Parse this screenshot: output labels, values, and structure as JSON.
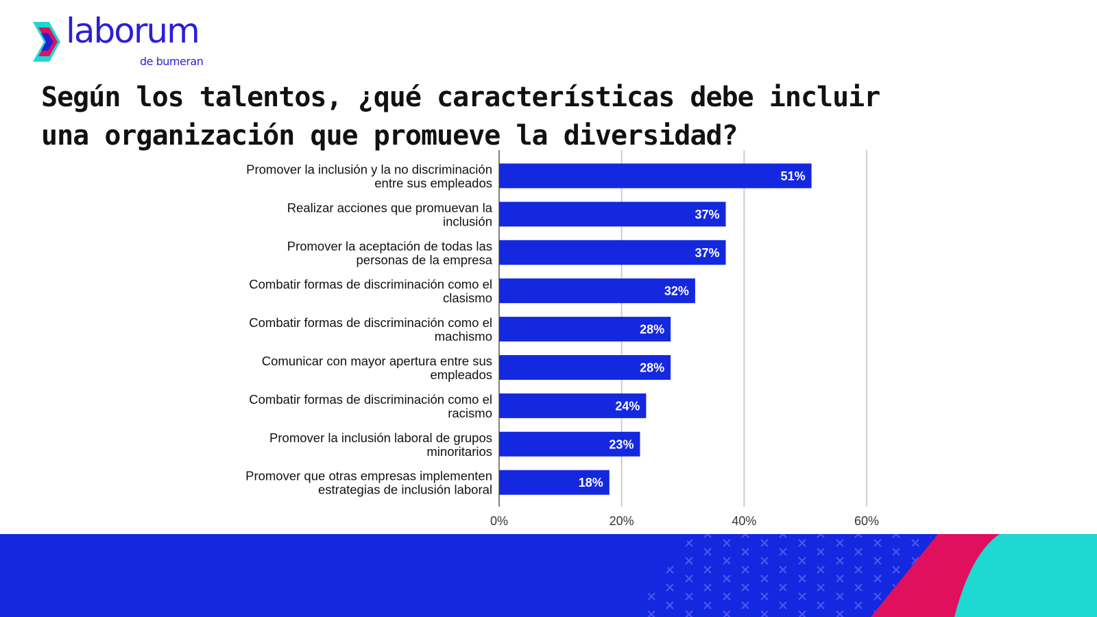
{
  "brand": {
    "name": "laborum",
    "tagline": "de bumeran",
    "primary_color": "#2a1fd6",
    "accent_colors": [
      "#e0105f",
      "#1ed8d2"
    ]
  },
  "title": "Según los talentos, ¿qué características debe incluir una organización que promueve la diversidad?",
  "chart_data": {
    "type": "bar",
    "orientation": "horizontal",
    "title": "Según los talentos, ¿qué características debe incluir una organización que promueve la diversidad?",
    "categories": [
      [
        "Promover la inclusión y la no discriminación",
        "entre sus empleados"
      ],
      [
        "Realizar acciones que promuevan la",
        "inclusión"
      ],
      [
        "Promover la aceptación de todas las",
        "personas de la empresa"
      ],
      [
        "Combatir formas de discriminación como el",
        "clasismo"
      ],
      [
        "Combatir formas de discriminación como el",
        "machismo"
      ],
      [
        "Comunicar con mayor apertura entre sus",
        "empleados"
      ],
      [
        "Combatir formas de discriminación como el",
        "racismo"
      ],
      [
        "Promover la inclusión laboral de grupos",
        "minoritarios"
      ],
      [
        "Promover que otras empresas implementen",
        "estrategias de inclusión laboral"
      ]
    ],
    "values": [
      51,
      37,
      37,
      32,
      28,
      28,
      24,
      23,
      18
    ],
    "data_labels": [
      "51%",
      "37%",
      "37%",
      "32%",
      "28%",
      "28%",
      "24%",
      "23%",
      "18%"
    ],
    "xlim": [
      0,
      60
    ],
    "xticks": [
      0,
      20,
      40,
      60
    ],
    "xtick_labels": [
      "0%",
      "20%",
      "40%",
      "60%"
    ],
    "grid": true,
    "bar_color": "#1428e0",
    "data_label_color": "#ffffff"
  }
}
